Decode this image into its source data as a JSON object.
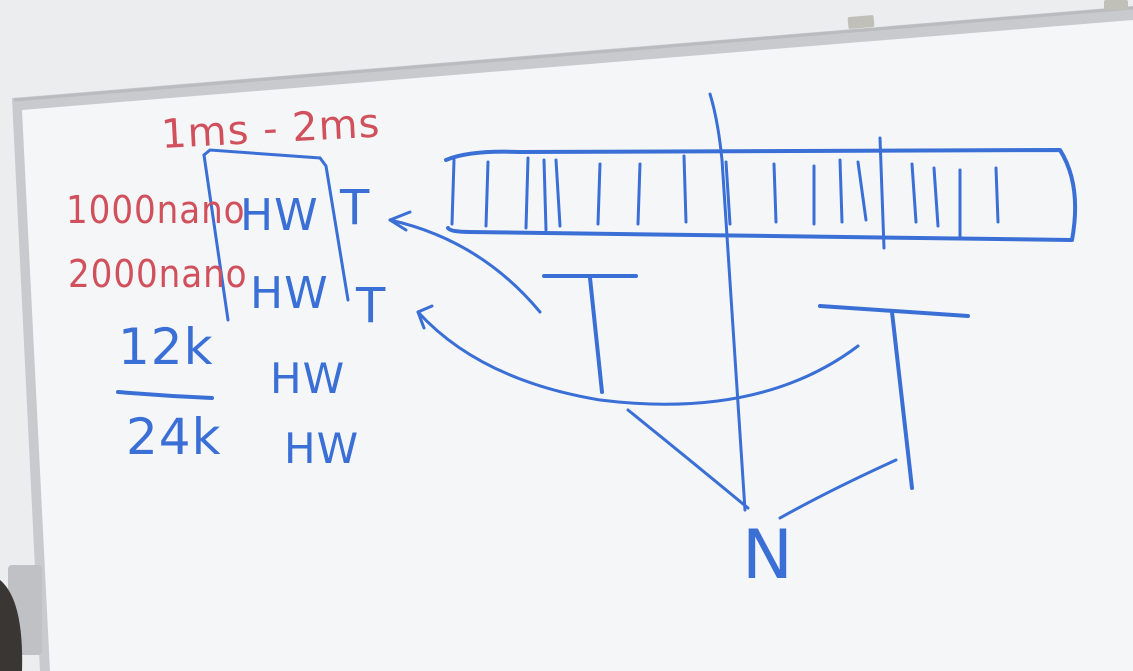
{
  "whiteboard": {
    "latency_range": "1ms - 2ms",
    "nanos": [
      "1000nano",
      "2000nano"
    ],
    "fraction": {
      "numerator": "12k",
      "denominator": "24k"
    },
    "hw_labels": [
      "HW",
      "HW",
      "HW",
      "HW"
    ],
    "thread_labels": [
      "T",
      "T"
    ],
    "diagram_labels": [
      "T",
      "T",
      "N"
    ]
  },
  "colors": {
    "red_marker": "#d0505c",
    "blue_marker": "#3a6fd6",
    "board": "#f4f5f7",
    "wall": "#e9eaec",
    "frame": "#c9cbcf"
  }
}
